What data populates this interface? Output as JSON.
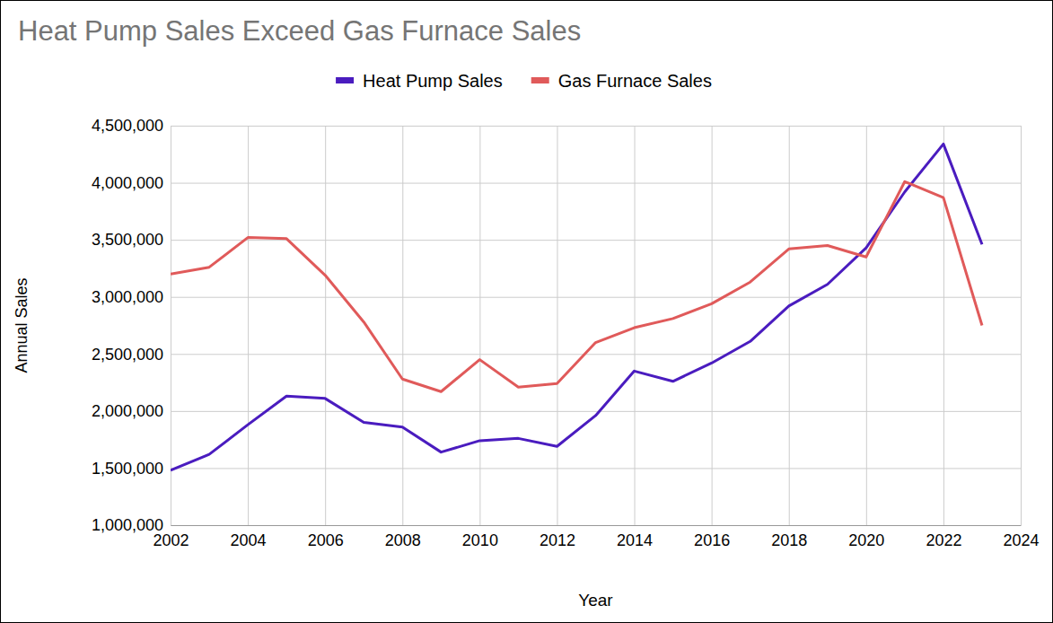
{
  "chart_data": {
    "type": "line",
    "title": "Heat Pump Sales Exceed Gas Furnace Sales",
    "x_label": "Year",
    "y_label": "Annual Sales",
    "x": [
      2002,
      2003,
      2004,
      2005,
      2006,
      2007,
      2008,
      2009,
      2010,
      2011,
      2012,
      2013,
      2014,
      2015,
      2016,
      2017,
      2018,
      2019,
      2020,
      2021,
      2022,
      2023
    ],
    "series": [
      {
        "name": "Heat Pump Sales",
        "color": "#4a1cbf",
        "values": [
          1480000,
          1620000,
          1880000,
          2130000,
          2110000,
          1900000,
          1860000,
          1640000,
          1740000,
          1760000,
          1690000,
          1960000,
          2350000,
          2260000,
          2420000,
          2610000,
          2920000,
          3110000,
          3430000,
          3920000,
          4340000,
          3460000
        ]
      },
      {
        "name": "Gas Furnace Sales",
        "color": "#e05a5a",
        "values": [
          3200000,
          3260000,
          3520000,
          3510000,
          3190000,
          2780000,
          2280000,
          2170000,
          2450000,
          2210000,
          2240000,
          2600000,
          2730000,
          2810000,
          2940000,
          3130000,
          3420000,
          3450000,
          3350000,
          4010000,
          3870000,
          2750000
        ]
      }
    ],
    "xlim": [
      2002,
      2024
    ],
    "xticks": [
      2002,
      2004,
      2006,
      2008,
      2010,
      2012,
      2014,
      2016,
      2018,
      2020,
      2022,
      2024
    ],
    "ylim": [
      1000000,
      4500000
    ],
    "yticks": [
      {
        "value": 1000000,
        "label": "1,000,000"
      },
      {
        "value": 1500000,
        "label": "1,500,000"
      },
      {
        "value": 2000000,
        "label": "2,000,000"
      },
      {
        "value": 2500000,
        "label": "2,500,000"
      },
      {
        "value": 3000000,
        "label": "3,000,000"
      },
      {
        "value": 3500000,
        "label": "3,500,000"
      },
      {
        "value": 4000000,
        "label": "4,000,000"
      },
      {
        "value": 4500000,
        "label": "4,500,000"
      }
    ],
    "grid": true,
    "legend": "top"
  }
}
